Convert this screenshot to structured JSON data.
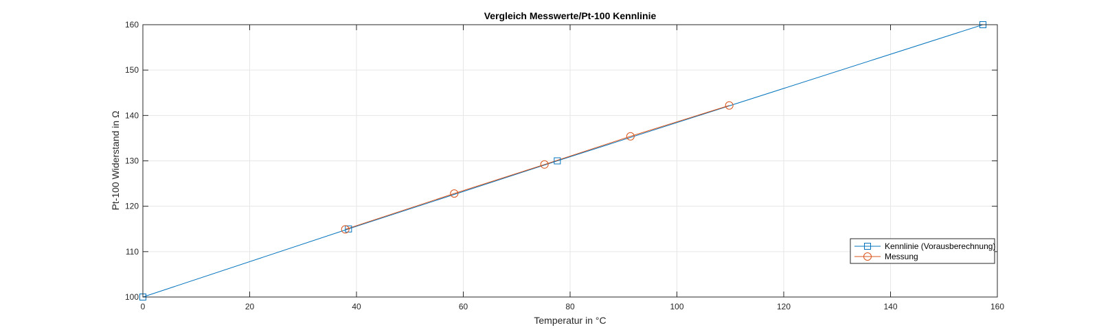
{
  "chart_data": {
    "type": "line",
    "title": "Vergleich Messwerte/Pt-100 Kennlinie",
    "xlabel": "Temperatur in °C",
    "ylabel": "Pt-100 Widerstand in Ω",
    "xlim": [
      0,
      160
    ],
    "ylim": [
      100,
      160
    ],
    "xticks": [
      0,
      20,
      40,
      60,
      80,
      100,
      120,
      140,
      160
    ],
    "yticks": [
      100,
      110,
      120,
      130,
      140,
      150,
      160
    ],
    "grid": true,
    "legend_position": "bottom-right",
    "series": [
      {
        "name": "Kennlinie (Vorausberechnung)",
        "color": "#0072BD",
        "marker": "square",
        "x": [
          0,
          38.5,
          77.6,
          157.3
        ],
        "y": [
          100,
          115,
          130,
          160
        ]
      },
      {
        "name": "Messung",
        "color": "#D95319",
        "marker": "circle",
        "x": [
          37.9,
          58.3,
          75.2,
          91.3,
          109.8
        ],
        "y": [
          114.9,
          122.8,
          129.2,
          135.4,
          142.2
        ]
      }
    ]
  }
}
